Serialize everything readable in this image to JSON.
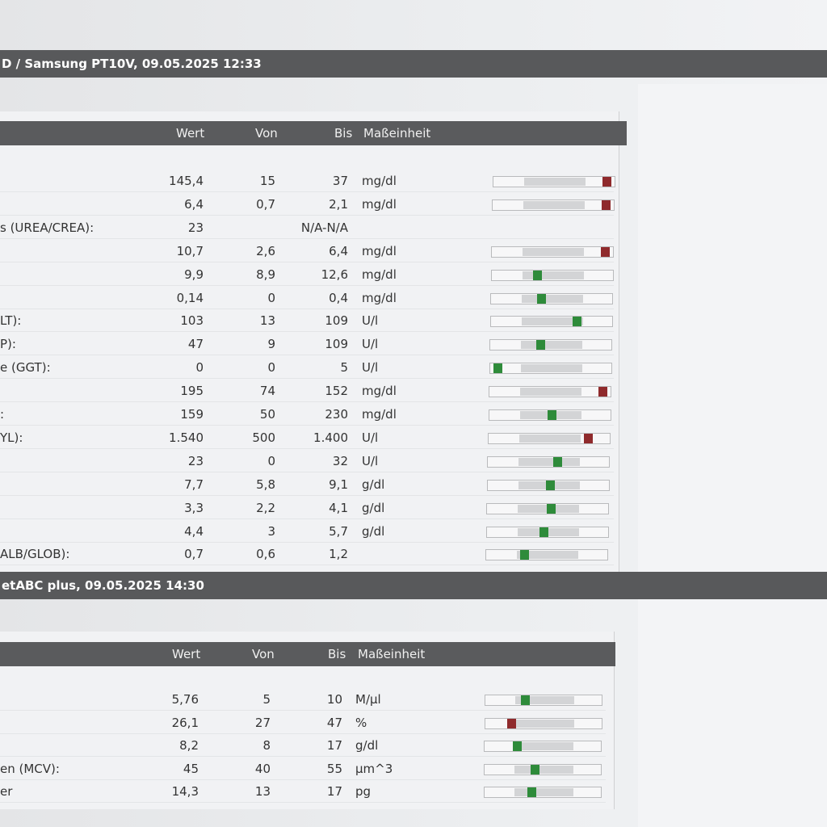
{
  "section1": {
    "title": "D / Samsung PT10V, 09.05.2025 12:33",
    "headers": {
      "wert": "Wert",
      "von": "Von",
      "bis": "Bis",
      "unit": "Maßeinheit"
    },
    "rows": [
      {
        "label": "",
        "wert": "145,4",
        "von": "15",
        "bis": "37",
        "unit": "mg/dl",
        "level": 0.97,
        "status": "high"
      },
      {
        "label": "",
        "wert": "6,4",
        "von": "0,7",
        "bis": "2,1",
        "unit": "mg/dl",
        "level": 0.97,
        "status": "high"
      },
      {
        "label": "s (UREA/CREA):",
        "wert": "23",
        "von": "",
        "bis": "N/A-N/A",
        "unit": "",
        "level": null,
        "status": ""
      },
      {
        "label": "",
        "wert": "10,7",
        "von": "2,6",
        "bis": "6,4",
        "unit": "mg/dl",
        "level": 0.97,
        "status": "high"
      },
      {
        "label": "",
        "wert": "9,9",
        "von": "8,9",
        "bis": "12,6",
        "unit": "mg/dl",
        "level": 0.37,
        "status": "normal"
      },
      {
        "label": "",
        "wert": "0,14",
        "von": "0",
        "bis": "0,4",
        "unit": "mg/dl",
        "level": 0.41,
        "status": "normal"
      },
      {
        "label": "LT):",
        "wert": "103",
        "von": "13",
        "bis": "109",
        "unit": "U/l",
        "level": 0.73,
        "status": "normal"
      },
      {
        "label": "P):",
        "wert": "47",
        "von": "9",
        "bis": "109",
        "unit": "U/l",
        "level": 0.41,
        "status": "normal"
      },
      {
        "label": "e (GGT):",
        "wert": "0",
        "von": "0",
        "bis": "5",
        "unit": "U/l",
        "level": 0.03,
        "status": "normal"
      },
      {
        "label": "",
        "wert": "195",
        "von": "74",
        "bis": "152",
        "unit": "mg/dl",
        "level": 0.97,
        "status": "high"
      },
      {
        "label": ":",
        "wert": "159",
        "von": "50",
        "bis": "230",
        "unit": "mg/dl",
        "level": 0.52,
        "status": "normal"
      },
      {
        "label": "YL):",
        "wert": "1.540",
        "von": "500",
        "bis": "1.400",
        "unit": "U/l",
        "level": 0.85,
        "status": "high"
      },
      {
        "label": "",
        "wert": "23",
        "von": "0",
        "bis": "32",
        "unit": "U/l",
        "level": 0.58,
        "status": "normal"
      },
      {
        "label": "",
        "wert": "7,7",
        "von": "5,8",
        "bis": "9,1",
        "unit": "g/dl",
        "level": 0.52,
        "status": "normal"
      },
      {
        "label": "",
        "wert": "3,3",
        "von": "2,2",
        "bis": "4,1",
        "unit": "g/dl",
        "level": 0.53,
        "status": "normal"
      },
      {
        "label": "",
        "wert": "4,4",
        "von": "3",
        "bis": "5,7",
        "unit": "g/dl",
        "level": 0.47,
        "status": "normal"
      },
      {
        "label": "ALB/GLOB):",
        "wert": "0,7",
        "von": "0,6",
        "bis": "1,2",
        "unit": "",
        "level": 0.3,
        "status": "normal"
      }
    ]
  },
  "section2": {
    "title": "etABC plus, 09.05.2025 14:30",
    "headers": {
      "wert": "Wert",
      "von": "Von",
      "bis": "Bis",
      "unit": "Maßeinheit"
    },
    "rows": [
      {
        "label": "",
        "wert": "5,76",
        "von": "5",
        "bis": "10",
        "unit": "M/µl",
        "level": 0.33,
        "status": "normal"
      },
      {
        "label": "",
        "wert": "26,1",
        "von": "27",
        "bis": "47",
        "unit": "%",
        "level": 0.2,
        "status": "low"
      },
      {
        "label": "",
        "wert": "8,2",
        "von": "8",
        "bis": "17",
        "unit": "g/dl",
        "level": 0.26,
        "status": "normal"
      },
      {
        "label": "en (MCV):",
        "wert": "45",
        "von": "40",
        "bis": "55",
        "unit": "µm^3",
        "level": 0.43,
        "status": "normal"
      },
      {
        "label": "er",
        "wert": "14,3",
        "von": "13",
        "bis": "17",
        "unit": "pg",
        "level": 0.4,
        "status": "normal"
      }
    ]
  }
}
